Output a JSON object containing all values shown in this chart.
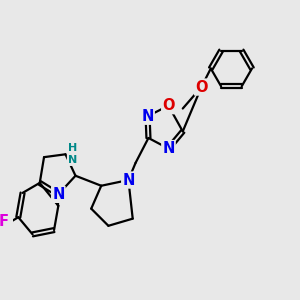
{
  "bg": "#e8e8e8",
  "bond_color": "#000000",
  "bw": 1.6,
  "atom_colors": {
    "N": "#0000ee",
    "O": "#dd0000",
    "F": "#dd00dd",
    "H": "#008888",
    "C": "#000000"
  },
  "fs": 9.5
}
